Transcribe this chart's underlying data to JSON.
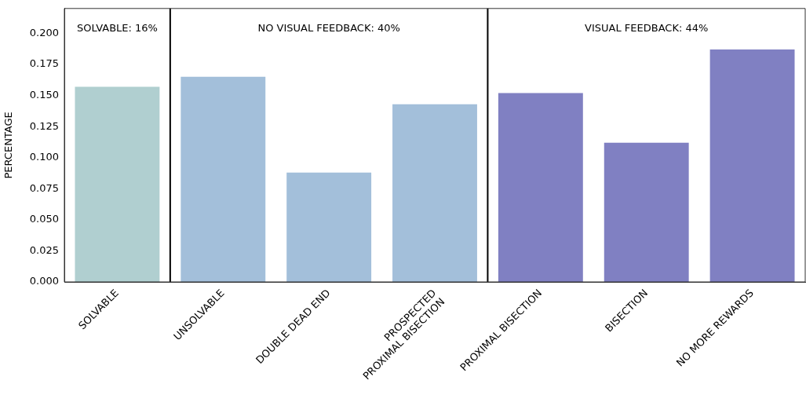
{
  "chart_data": {
    "type": "bar",
    "ylabel": "PERCENTAGE",
    "categories": [
      "SOLVABLE",
      "UNSOLVABLE",
      "DOUBLE DEAD END",
      "PROSPECTED\nPROXIMAL BISECTION",
      "PROXIMAL BISECTION",
      "BISECTION",
      "NO MORE REWARDS"
    ],
    "values": [
      0.157,
      0.165,
      0.088,
      0.143,
      0.152,
      0.112,
      0.187
    ],
    "colors": [
      "#b0cfd0",
      "#a3bfda",
      "#a3bfda",
      "#a3bfda",
      "#8080c2",
      "#8080c2",
      "#8080c2"
    ],
    "ylim": [
      0,
      0.22
    ],
    "yticks": [
      {
        "value": 0,
        "label": "0.000"
      },
      {
        "value": 0.025,
        "label": "0.025"
      },
      {
        "value": 0.05,
        "label": "0.050"
      },
      {
        "value": 0.075,
        "label": "0.075"
      },
      {
        "value": 0.1,
        "label": "0.100"
      },
      {
        "value": 0.125,
        "label": "0.125"
      },
      {
        "value": 0.15,
        "label": "0.150"
      },
      {
        "value": 0.175,
        "label": "0.175"
      },
      {
        "value": 0.2,
        "label": "0.200"
      }
    ],
    "annotations": [
      "SOLVABLE: 16%",
      "NO VISUAL FEEDBACK: 40%",
      "VISUAL FEEDBACK: 44%"
    ],
    "grid": false,
    "legend": false
  }
}
